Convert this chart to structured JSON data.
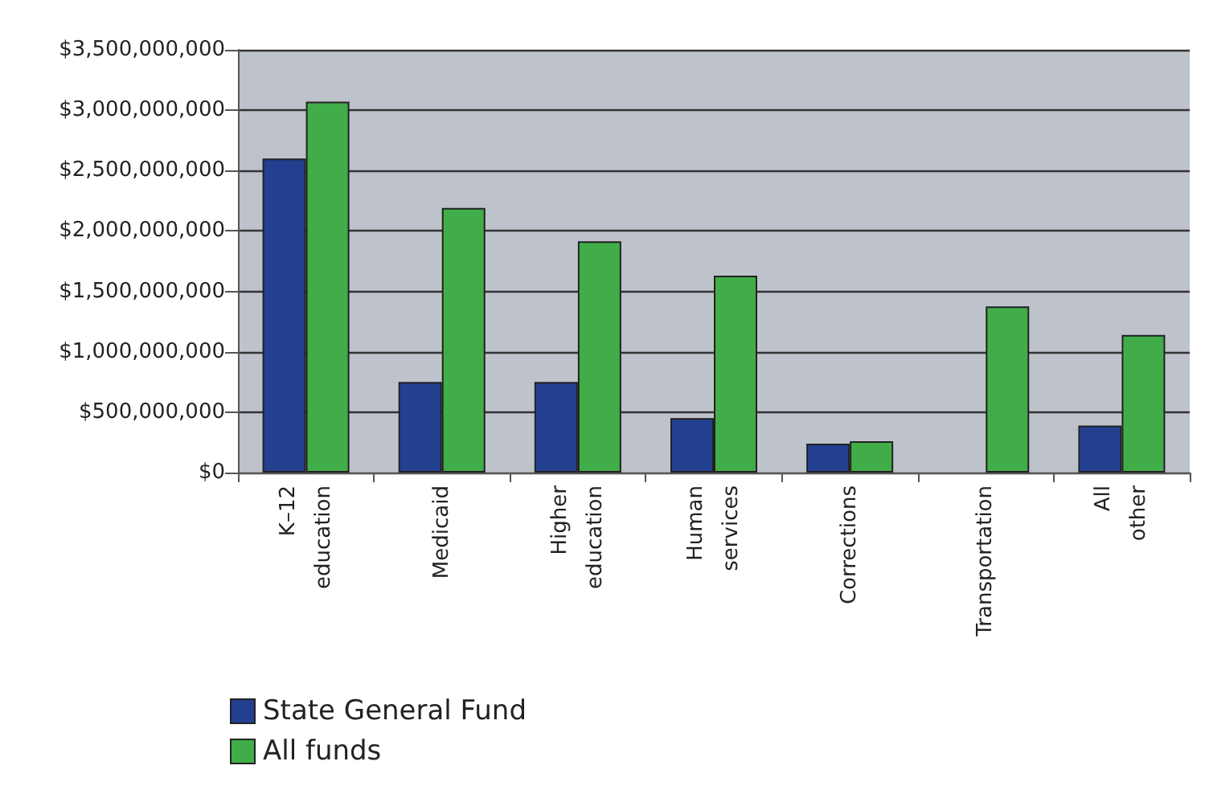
{
  "chart_data": {
    "type": "bar",
    "categories": [
      "K–12\neducation",
      "Medicaid",
      "Higher\neducation",
      "Human\nservices",
      "Corrections",
      "Transportation",
      "All\nother"
    ],
    "series": [
      {
        "name": "State General Fund",
        "color": "#233f8f",
        "values": [
          2600000000,
          750000000,
          750000000,
          450000000,
          240000000,
          null,
          390000000
        ]
      },
      {
        "name": "All funds",
        "color": "#41ad49",
        "values": [
          3070000000,
          2190000000,
          1915000000,
          1630000000,
          260000000,
          1375000000,
          1140000000
        ]
      }
    ],
    "ylim": [
      0,
      3500000000
    ],
    "yticks": [
      {
        "value": 0,
        "label": "$0"
      },
      {
        "value": 500000000,
        "label": "$500,000,000"
      },
      {
        "value": 1000000000,
        "label": "$1,000,000,000"
      },
      {
        "value": 1500000000,
        "label": "$1,500,000,000"
      },
      {
        "value": 2000000000,
        "label": "$2,000,000,000"
      },
      {
        "value": 2500000000,
        "label": "$2,500,000,000"
      },
      {
        "value": 3000000000,
        "label": "$3,000,000,000"
      },
      {
        "value": 3500000000,
        "label": "$3,500,000,000"
      }
    ],
    "grid": "y",
    "legend": "bottom left"
  }
}
